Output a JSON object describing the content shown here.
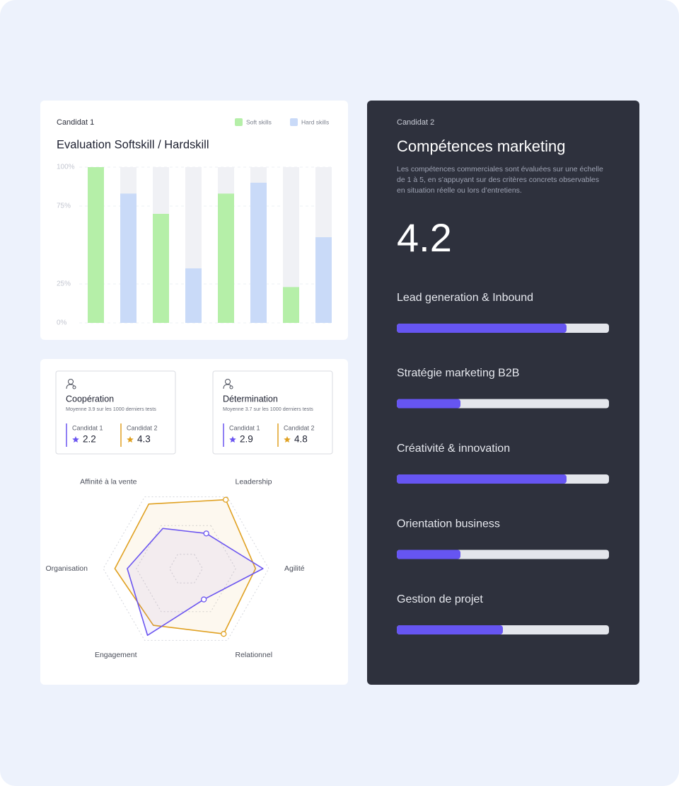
{
  "chart_data": [
    {
      "type": "bar",
      "subtitle": "Candidat 1",
      "title": "Evaluation Softskill / Hardskill",
      "categories": [
        null,
        null,
        null,
        null
      ],
      "series": [
        {
          "name": "Soft skills",
          "color": "#b5efa8",
          "values": [
            100,
            70,
            83,
            23
          ]
        },
        {
          "name": "Hard skills",
          "color": "#c9daf8",
          "values": [
            83,
            35,
            90,
            55
          ]
        }
      ],
      "ylim": [
        0,
        100
      ],
      "yticks": [
        {
          "value": 0,
          "label": "0%"
        },
        {
          "value": 25,
          "label": "25%"
        },
        {
          "value": 75,
          "label": "75%"
        },
        {
          "value": 100,
          "label": "100%"
        }
      ],
      "grid": true,
      "legend": "top-right"
    },
    {
      "type": "radar",
      "axes": [
        "Leadership",
        "Agilité",
        "Relationnel",
        "Engagement",
        "Organisation",
        "Affinité à la vente"
      ],
      "series": [
        {
          "color": "#6b55f0",
          "values": [
            49,
            93,
            43,
            93,
            71,
            56
          ]
        },
        {
          "color": "#e0a122",
          "values": [
            96,
            84,
            91,
            79,
            86,
            90
          ]
        }
      ],
      "rlim": [
        0,
        100
      ],
      "rticks": [
        20,
        60,
        100
      ]
    },
    {
      "type": "progress",
      "title": "Compétences marketing",
      "categories": [
        "Lead generation & Inbound",
        "Stratégie marketing B2B",
        "Créativité & innovation",
        "Orientation business",
        "Gestion de projet"
      ],
      "values": [
        80,
        30,
        80,
        30,
        50
      ],
      "color": "#6655f2",
      "xlim": [
        0,
        100
      ]
    }
  ],
  "criteria_cards": [
    {
      "title": "Coopération",
      "subtitle": "Moyenne 3.9 sur les 1000 derniers tests",
      "scores": [
        {
          "label": "Candidat 1",
          "value": 2.2
        },
        {
          "label": "Candidat 2",
          "value": 4.3
        }
      ]
    },
    {
      "title": "Détermination",
      "subtitle": "Moyenne 3.7 sur les 1000 derniers tests",
      "scores": [
        {
          "label": "Candidat 1",
          "value": 2.9
        },
        {
          "label": "Candidat 2",
          "value": 4.8
        }
      ]
    }
  ],
  "candidate_2_panel": {
    "label": "Candidat 2",
    "description": "Les compétences commerciales sont évaluées sur une échelle de 1 à 5, en s’appuyant sur des critères concrets observables en situation réelle ou lors d’entretiens.",
    "score": 4.2
  }
}
